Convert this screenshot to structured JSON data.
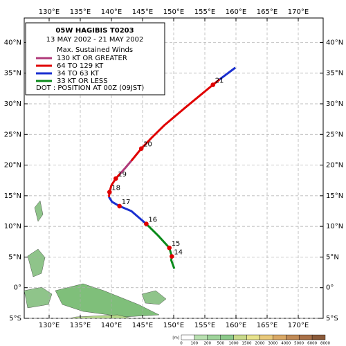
{
  "map": {
    "xlim": [
      126,
      174
    ],
    "ylim": [
      -5,
      44
    ],
    "grid": true,
    "xticks": [
      {
        "value": 130,
        "label": "130°E"
      },
      {
        "value": 135,
        "label": "135°E"
      },
      {
        "value": 140,
        "label": "140°E"
      },
      {
        "value": 145,
        "label": "145°E"
      },
      {
        "value": 150,
        "label": "150°E"
      },
      {
        "value": 155,
        "label": "155°E"
      },
      {
        "value": 160,
        "label": "160°E"
      },
      {
        "value": 165,
        "label": "165°E"
      },
      {
        "value": 170,
        "label": "170°E"
      }
    ],
    "yticks": [
      {
        "value": -5,
        "label": "5°S"
      },
      {
        "value": 0,
        "label": "0°"
      },
      {
        "value": 5,
        "label": "5°N"
      },
      {
        "value": 10,
        "label": "10°N"
      },
      {
        "value": 15,
        "label": "15°N"
      },
      {
        "value": 20,
        "label": "20°N"
      },
      {
        "value": 25,
        "label": "25°N"
      },
      {
        "value": 30,
        "label": "30°N"
      },
      {
        "value": 35,
        "label": "35°N"
      },
      {
        "value": 40,
        "label": "40°N"
      }
    ]
  },
  "legend": {
    "title": "05W  HAGIBIS  T0203",
    "period": "13 MAY 2002 - 21 MAY 2002",
    "heading": "Max. Sustained Winds",
    "items": [
      {
        "label": "130 KT OR GREATER",
        "color": "#b03a7a"
      },
      {
        "label": "64 TO 129 KT",
        "color": "#e00000"
      },
      {
        "label": "34 TO 63 KT",
        "color": "#1a2fd0"
      },
      {
        "label": "33 KT OR LESS",
        "color": "#0a8a1a"
      }
    ],
    "note": "DOT : POSITION AT 00Z (09JST)"
  },
  "track": {
    "segments": [
      {
        "color": "#0a8a1a",
        "points": [
          [
            150.1,
            3.1
          ],
          [
            149.6,
            4.5
          ],
          [
            149.7,
            5.1
          ],
          [
            149.3,
            6.5
          ],
          [
            147.5,
            8.5
          ],
          [
            145.6,
            10.4
          ]
        ]
      },
      {
        "color": "#1a2fd0",
        "points": [
          [
            145.6,
            10.4
          ],
          [
            143.2,
            12.5
          ],
          [
            141.3,
            13.3
          ],
          [
            140.1,
            14.0
          ],
          [
            139.6,
            14.8
          ]
        ]
      },
      {
        "color": "#e00000",
        "points": [
          [
            139.6,
            14.8
          ],
          [
            139.7,
            15.6
          ],
          [
            140.0,
            16.7
          ],
          [
            140.7,
            17.8
          ],
          [
            141.4,
            18.6
          ]
        ]
      },
      {
        "color": "#b03a7a",
        "points": [
          [
            141.4,
            18.6
          ],
          [
            142.2,
            19.5
          ],
          [
            143.2,
            20.7
          ]
        ]
      },
      {
        "color": "#e00000",
        "points": [
          [
            143.2,
            20.7
          ],
          [
            144.8,
            22.7
          ],
          [
            146.5,
            24.5
          ],
          [
            148.5,
            26.5
          ],
          [
            152.0,
            29.5
          ],
          [
            156.3,
            33.1
          ],
          [
            157.4,
            34.0
          ]
        ]
      },
      {
        "color": "#1a2fd0",
        "points": [
          [
            157.4,
            34.0
          ],
          [
            159.9,
            35.9
          ]
        ]
      }
    ],
    "positions": [
      {
        "label": "14",
        "lon": 149.7,
        "lat": 5.1
      },
      {
        "label": "15",
        "lon": 149.3,
        "lat": 6.5
      },
      {
        "label": "16",
        "lon": 145.6,
        "lat": 10.4
      },
      {
        "label": "17",
        "lon": 141.3,
        "lat": 13.3
      },
      {
        "label": "18",
        "lon": 139.7,
        "lat": 15.6
      },
      {
        "label": "19",
        "lon": 140.7,
        "lat": 17.8
      },
      {
        "label": "20",
        "lon": 144.8,
        "lat": 22.7
      },
      {
        "label": "21",
        "lon": 156.3,
        "lat": 33.1
      }
    ]
  },
  "colorbar": {
    "labels": [
      "0",
      "100",
      "200",
      "500",
      "1000",
      "1500",
      "2000",
      "3000",
      "4000",
      "5000",
      "6000",
      "8000"
    ],
    "unit": "[m]"
  }
}
